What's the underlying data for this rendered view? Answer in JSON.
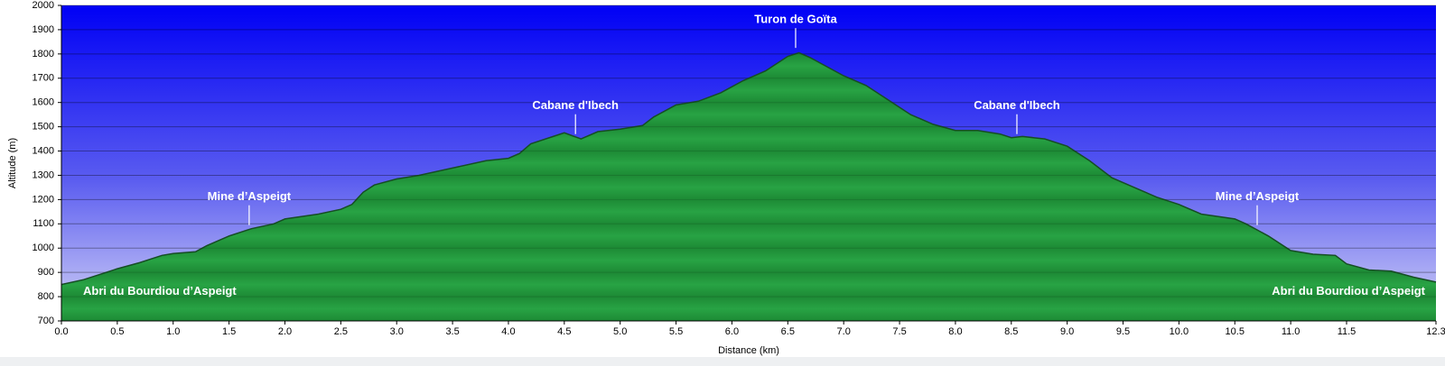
{
  "chart_data": {
    "type": "area",
    "xlabel": "Distance (km)",
    "ylabel": "Altitude (m)",
    "x": [
      0.0,
      0.2,
      0.4,
      0.5,
      0.7,
      0.9,
      1.0,
      1.2,
      1.3,
      1.5,
      1.7,
      1.9,
      2.0,
      2.3,
      2.5,
      2.6,
      2.7,
      2.8,
      3.0,
      3.2,
      3.5,
      3.8,
      4.0,
      4.1,
      4.2,
      4.4,
      4.5,
      4.65,
      4.8,
      5.0,
      5.2,
      5.3,
      5.5,
      5.7,
      5.9,
      6.1,
      6.3,
      6.5,
      6.6,
      6.7,
      6.8,
      7.0,
      7.2,
      7.4,
      7.6,
      7.8,
      8.0,
      8.2,
      8.4,
      8.5,
      8.6,
      8.8,
      9.0,
      9.2,
      9.4,
      9.6,
      9.8,
      10.0,
      10.2,
      10.5,
      10.6,
      10.8,
      11.0,
      11.2,
      11.4,
      11.5,
      11.7,
      11.9,
      12.1,
      12.3
    ],
    "values": [
      850,
      870,
      900,
      915,
      940,
      970,
      978,
      985,
      1010,
      1050,
      1080,
      1100,
      1120,
      1140,
      1160,
      1180,
      1230,
      1260,
      1285,
      1300,
      1330,
      1360,
      1370,
      1390,
      1430,
      1460,
      1475,
      1450,
      1480,
      1490,
      1505,
      1540,
      1590,
      1605,
      1640,
      1690,
      1730,
      1790,
      1805,
      1785,
      1760,
      1710,
      1670,
      1610,
      1550,
      1510,
      1485,
      1485,
      1470,
      1455,
      1460,
      1450,
      1420,
      1360,
      1290,
      1250,
      1210,
      1180,
      1140,
      1120,
      1100,
      1050,
      990,
      975,
      970,
      935,
      910,
      905,
      880,
      860
    ],
    "color": "#28a344",
    "xlim": [
      0,
      12.3
    ],
    "ylim": [
      700,
      2000
    ],
    "xticks": [
      {
        "value": 0,
        "label": "0.0"
      },
      0.5,
      {
        "value": 1,
        "label": "1.0"
      },
      1.5,
      {
        "value": 2,
        "label": "2.0"
      },
      2.5,
      {
        "value": 3,
        "label": "3.0"
      },
      3.5,
      {
        "value": 4,
        "label": "4.0"
      },
      4.5,
      {
        "value": 5,
        "label": "5.0"
      },
      5.5,
      {
        "value": 6,
        "label": "6.0"
      },
      6.5,
      {
        "value": 7,
        "label": "7.0"
      },
      7.5,
      {
        "value": 8,
        "label": "8.0"
      },
      8.5,
      {
        "value": 9,
        "label": "9.0"
      },
      9.5,
      {
        "value": 10,
        "label": "10.0"
      },
      10.5,
      {
        "value": 11,
        "label": "11.0"
      },
      11.5,
      12.3
    ],
    "yticks": [
      700,
      800,
      900,
      1000,
      1100,
      1200,
      1300,
      1400,
      1500,
      1600,
      1700,
      1800,
      1900,
      2000
    ],
    "grid": true,
    "annotations": [
      {
        "text": "Abri du Bourdiou d’Aspeigt",
        "x": 0,
        "y": 820
      },
      {
        "text": "Mine d’Aspeigt",
        "x": 1.68,
        "y": 1080
      },
      {
        "text": "Cabane d'Ibech",
        "x": 4.6,
        "y": 1455
      },
      {
        "text": "Turon de Goïta",
        "x": 6.57,
        "y": 1810
      },
      {
        "text": "Cabane d'Ibech",
        "x": 8.55,
        "y": 1455
      },
      {
        "text": "Mine d’Aspeigt",
        "x": 10.7,
        "y": 1080
      },
      {
        "text": "Abri du Bourdiou d’Aspeigt",
        "x": 12.3,
        "y": 820
      }
    ]
  }
}
